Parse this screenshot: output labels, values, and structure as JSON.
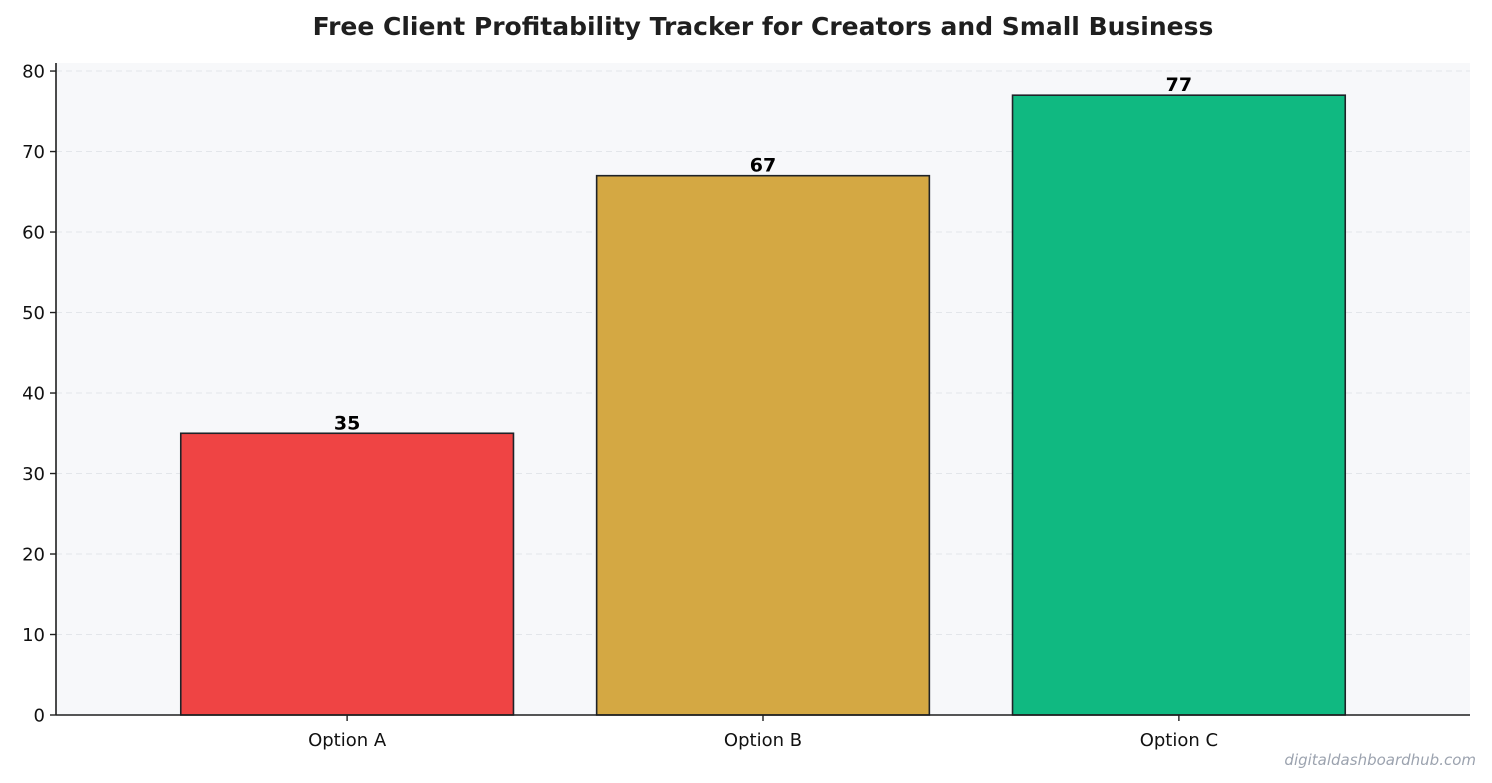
{
  "chart_data": {
    "type": "bar",
    "title": "Free Client Profitability Tracker for Creators and Small Business",
    "xlabel": "",
    "ylabel": "",
    "categories": [
      "Option A",
      "Option B",
      "Option C"
    ],
    "values": [
      35,
      67,
      77
    ],
    "data_labels": [
      "35",
      "67",
      "77"
    ],
    "colors": [
      "#ef4444",
      "#d4a843",
      "#10b981"
    ],
    "bar_edge_color": "#1f2328",
    "ylim": [
      0,
      81
    ],
    "yticks": [
      0,
      10,
      20,
      30,
      40,
      50,
      60,
      70,
      80
    ],
    "grid": "horizontal-dashed",
    "plot_background": "#f7f8fa",
    "grid_color": "#e3e6ea",
    "legend": "none"
  },
  "watermark": "digitaldashboardhub.com"
}
